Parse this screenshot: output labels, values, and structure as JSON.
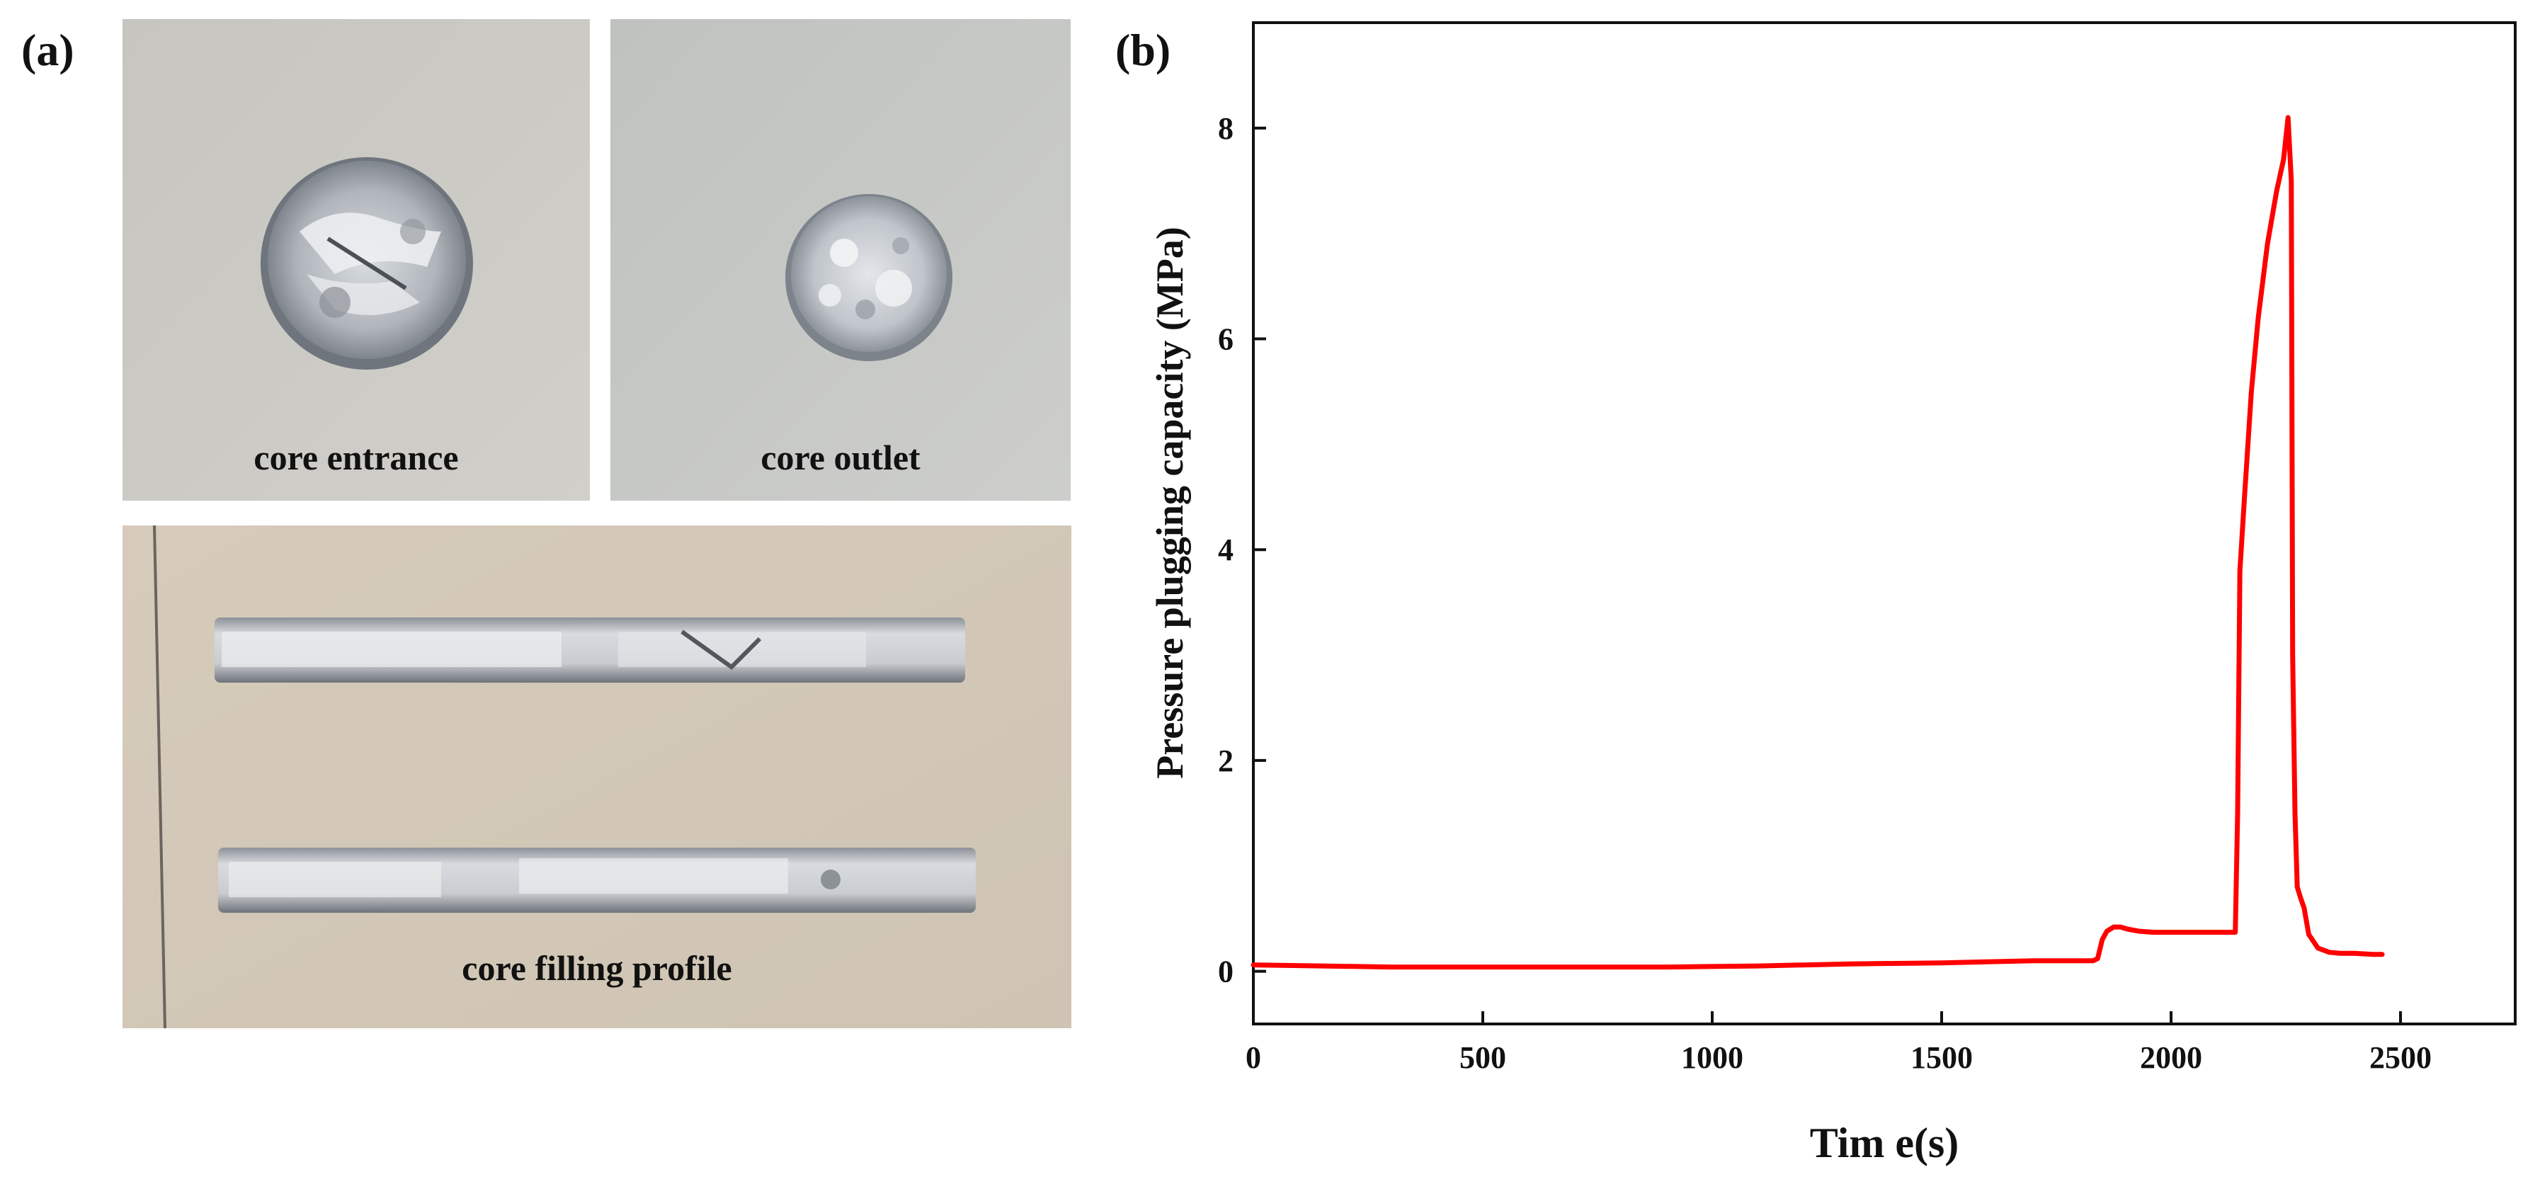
{
  "panels": {
    "a": {
      "label": "(a)"
    },
    "b": {
      "label": "(b)"
    }
  },
  "photos": {
    "entrance": {
      "caption": "core entrance"
    },
    "outlet": {
      "caption": "core outlet"
    },
    "profile": {
      "caption": "core filling profile"
    }
  },
  "colors": {
    "series": "#ff0000",
    "photo_background": "#c9c7c2",
    "profile_background": "#d4c9b8",
    "core_gray": "#9a9ea4"
  },
  "chart_data": {
    "type": "line",
    "xlabel": "Tim e(s)",
    "ylabel": "Pressure plugging capacity (MPa)",
    "xlim": [
      0,
      2750
    ],
    "ylim": [
      -0.5,
      9
    ],
    "xticks": [
      0,
      500,
      1000,
      1500,
      2000,
      2500
    ],
    "yticks": [
      0,
      2,
      4,
      6,
      8
    ],
    "grid": false,
    "series": [
      {
        "x": [
          0,
          150,
          300,
          600,
          900,
          1100,
          1300,
          1500,
          1700,
          1830,
          1840,
          1850,
          1860,
          1875,
          1890,
          1905,
          1930,
          1960,
          2000,
          2050,
          2100,
          2140,
          2145,
          2150,
          2160,
          2175,
          2190,
          2210,
          2230,
          2245,
          2255,
          2262,
          2265,
          2270,
          2275,
          2282,
          2290,
          2300,
          2320,
          2345,
          2370,
          2400,
          2440,
          2460
        ],
        "y": [
          0.06,
          0.05,
          0.04,
          0.04,
          0.04,
          0.05,
          0.07,
          0.08,
          0.1,
          0.1,
          0.12,
          0.3,
          0.38,
          0.42,
          0.42,
          0.4,
          0.38,
          0.37,
          0.37,
          0.37,
          0.37,
          0.37,
          1.5,
          3.8,
          4.5,
          5.5,
          6.2,
          6.9,
          7.4,
          7.7,
          8.1,
          7.5,
          3.0,
          1.5,
          0.8,
          0.7,
          0.6,
          0.35,
          0.22,
          0.18,
          0.17,
          0.17,
          0.16,
          0.16
        ]
      }
    ]
  }
}
